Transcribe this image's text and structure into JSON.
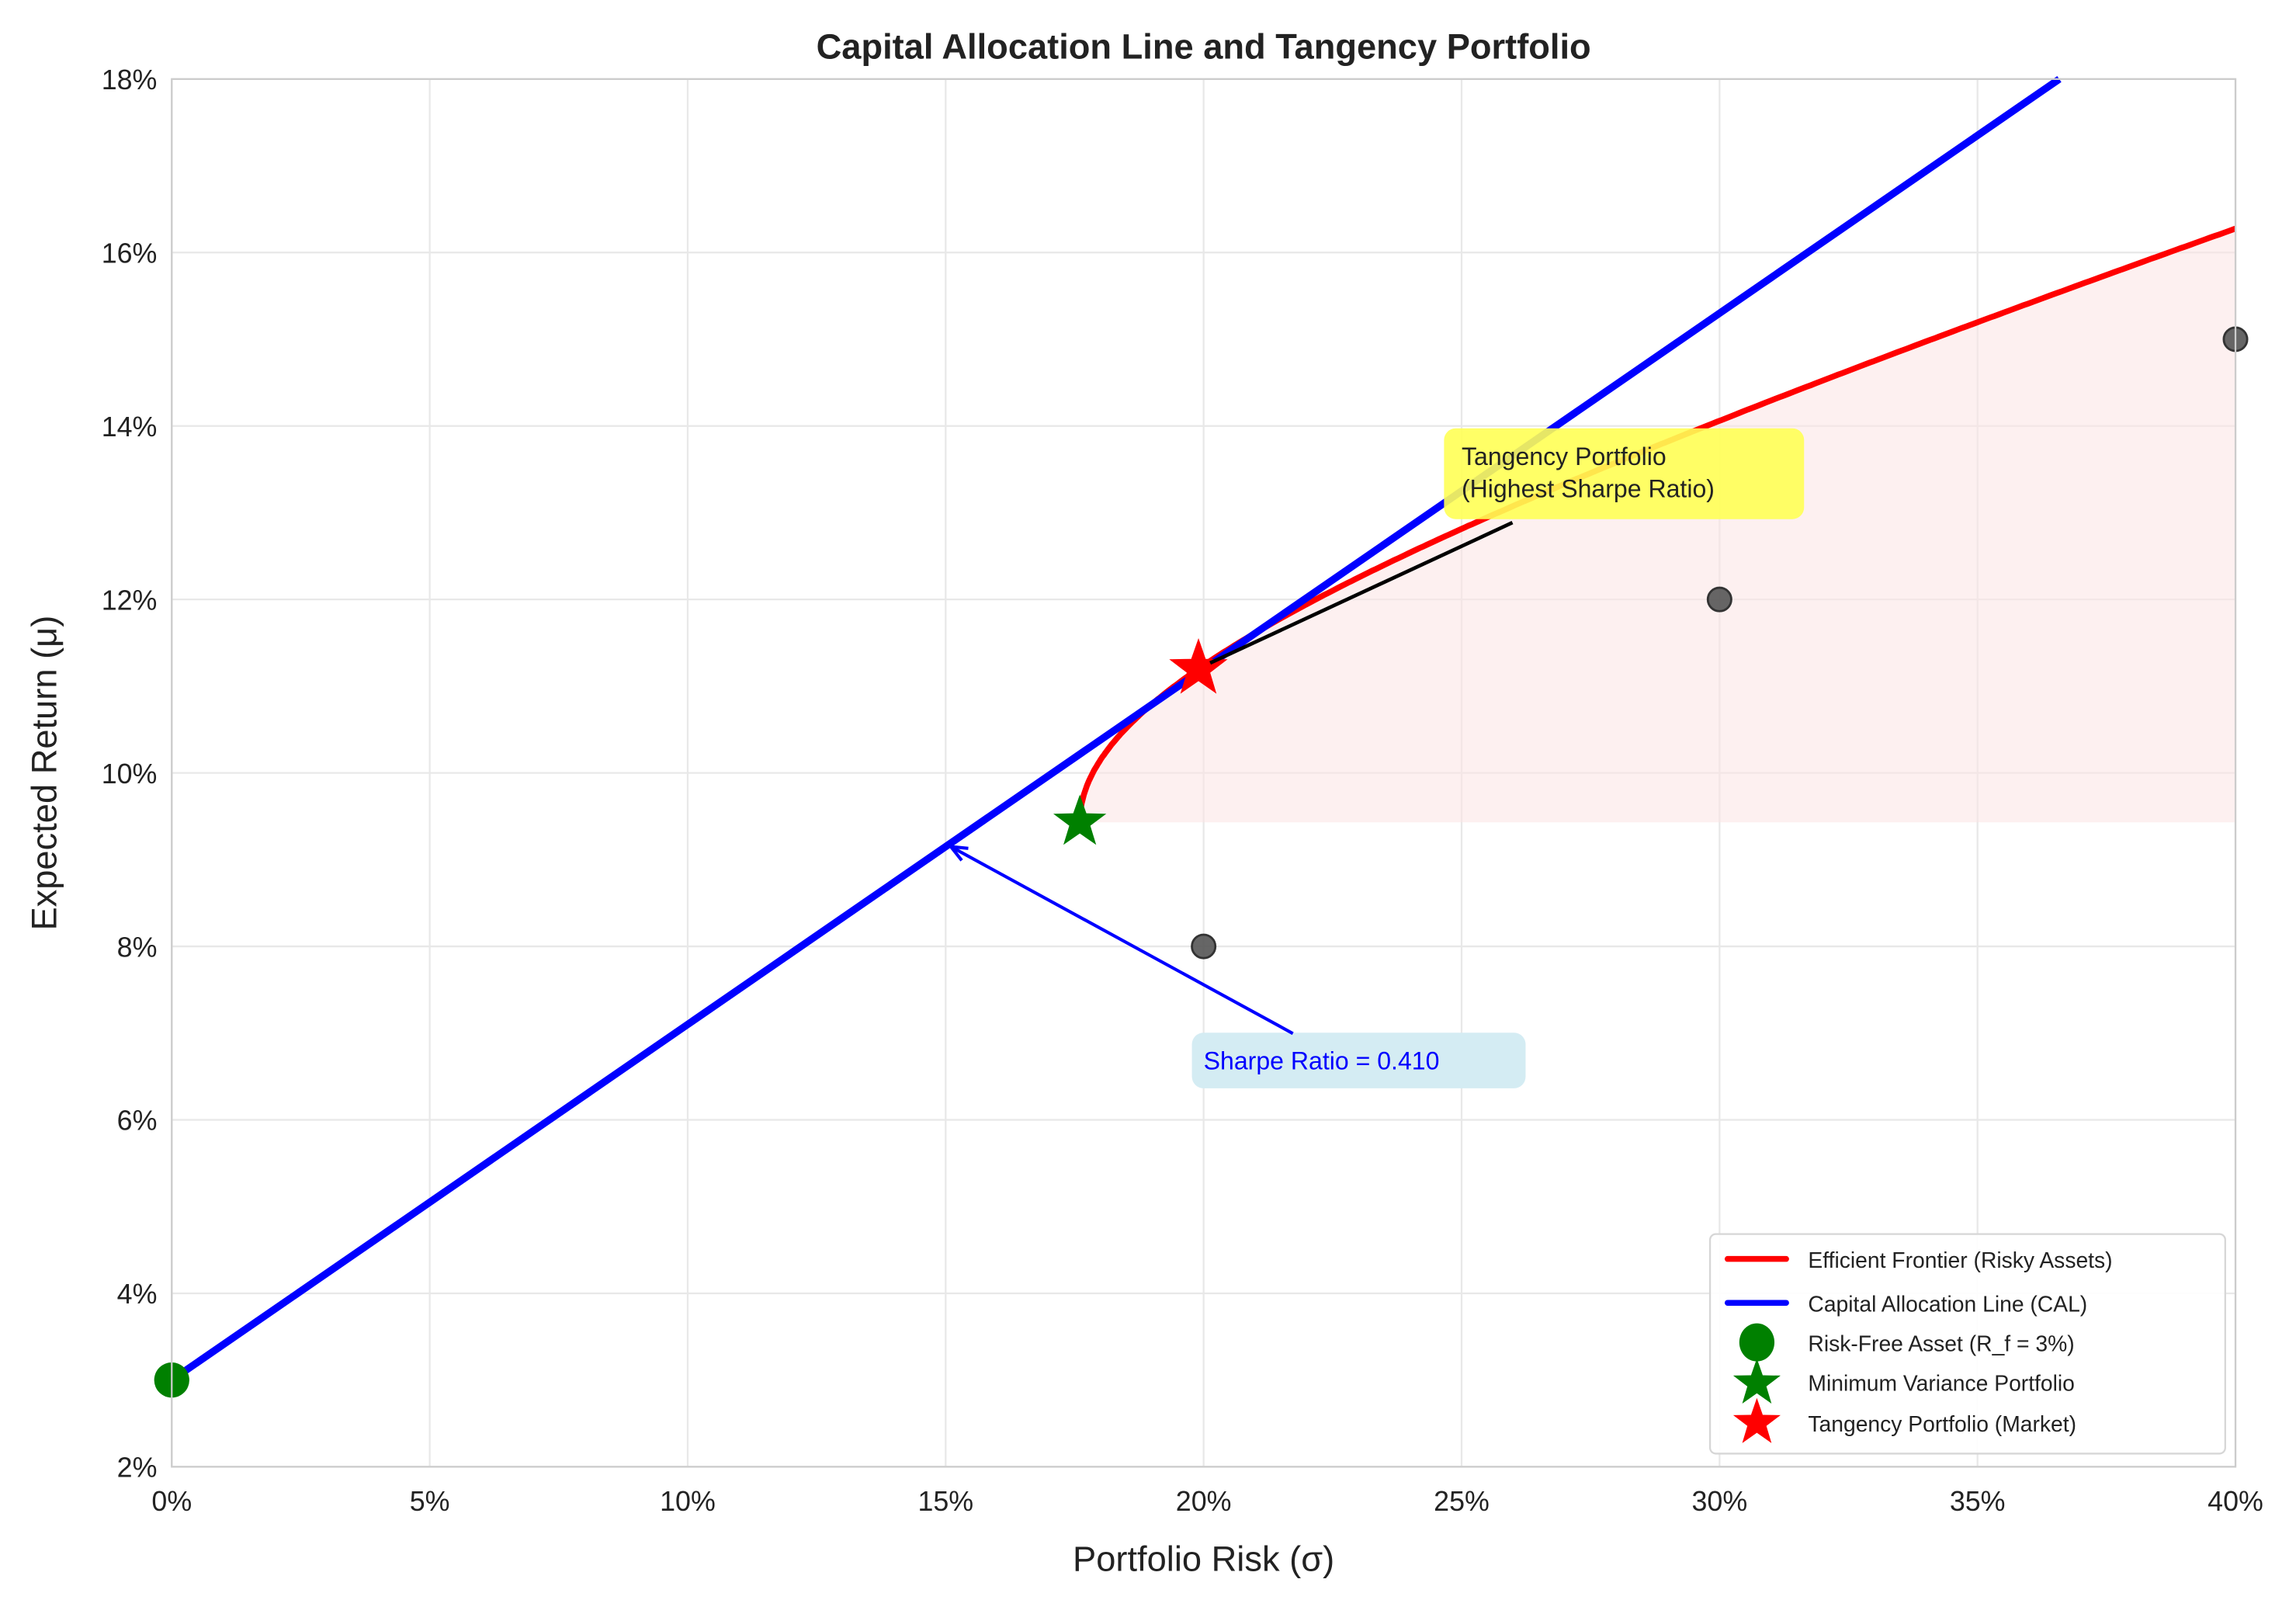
{
  "chart_data": {
    "type": "line",
    "title": "Capital Allocation Line and Tangency Portfolio",
    "xlabel": "Portfolio Risk (σ)",
    "ylabel": "Expected Return (μ)",
    "xlim": [
      0,
      40
    ],
    "ylim": [
      2,
      18
    ],
    "x_ticks": [
      "0%",
      "5%",
      "10%",
      "15%",
      "20%",
      "25%",
      "30%",
      "35%",
      "40%"
    ],
    "x_tick_values": [
      0,
      5,
      10,
      15,
      20,
      25,
      30,
      35,
      40
    ],
    "y_ticks": [
      "2%",
      "4%",
      "6%",
      "8%",
      "10%",
      "12%",
      "14%",
      "16%",
      "18%"
    ],
    "y_tick_values": [
      2,
      4,
      6,
      8,
      10,
      12,
      14,
      16,
      18
    ],
    "grid": true,
    "legend_position": "bottom-right",
    "series": [
      {
        "name": "Efficient Frontier (Risky Assets)",
        "kind": "line",
        "color": "#ff0000",
        "min_variance_point": [
          17.6,
          9.43
        ],
        "points": [
          [
            17.6,
            9.43
          ],
          [
            18.0,
            10.0
          ],
          [
            19.0,
            10.7
          ],
          [
            19.9,
            11.2
          ],
          [
            22,
            12.0
          ],
          [
            25,
            12.9
          ],
          [
            30,
            14.1
          ],
          [
            35,
            15.2
          ],
          [
            40,
            16.25
          ]
        ]
      },
      {
        "name": "Capital Allocation Line (CAL)",
        "kind": "line",
        "color": "#0000ff",
        "intercept": 3,
        "slope": 0.41
      },
      {
        "name": "Risk-Free Asset (R_f = 3%)",
        "kind": "marker-circle",
        "color": "#008000",
        "x": 0,
        "y": 3
      },
      {
        "name": "Minimum Variance Portfolio",
        "kind": "marker-star",
        "color": "#008000",
        "x": 17.6,
        "y": 9.43
      },
      {
        "name": "Tangency Portfolio (Market)",
        "kind": "marker-star",
        "color": "#ff0000",
        "x": 19.9,
        "y": 11.2
      }
    ],
    "assets": [
      {
        "x": 20,
        "y": 8
      },
      {
        "x": 30,
        "y": 12
      },
      {
        "x": 40,
        "y": 15
      }
    ],
    "shaded_region": {
      "color": "#fbe3e3",
      "description_floor": 9.43
    },
    "annotations": [
      {
        "line1": "Tangency Portfolio",
        "line2": "(Highest Sharpe Ratio)",
        "text_xy": [
          25,
          13.5
        ],
        "arrow_to": [
          19.9,
          11.2
        ],
        "box_color": "#ffff55"
      },
      {
        "text": "Sharpe Ratio = 0.410",
        "text_xy": [
          20,
          6.6
        ],
        "arrow_to": [
          15.1,
          9.15
        ],
        "box_color": "#d4ecf3",
        "text_color": "#0000ff"
      }
    ]
  }
}
